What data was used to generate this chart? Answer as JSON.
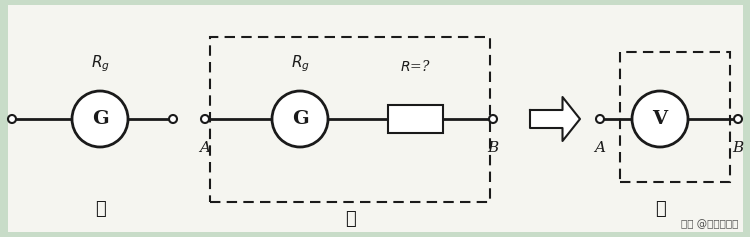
{
  "bg_color": "#c8dcc8",
  "fig_bg": "#c8dcc8",
  "panel_bg": "#f5f5f0",
  "line_color": "#1a1a1a",
  "watermark": "头条 @理性科普者",
  "jia_label": "甲",
  "yi_label": "乙",
  "bing_label": "丙",
  "Rg_label": "$R_g$",
  "R_label": "$R$=?",
  "A_label": "A",
  "B_label": "B",
  "G_label": "G",
  "V_label": "V"
}
